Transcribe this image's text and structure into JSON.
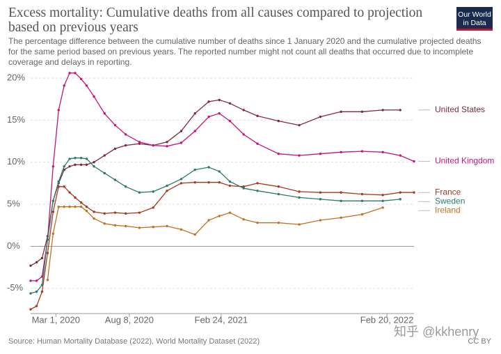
{
  "chart_data": {
    "type": "line",
    "title": "Excess mortality: Cumulative deaths from all causes compared to projection based on previous years",
    "subtitle": "The percentage difference between the cumulative number of deaths since 1 January 2020 and the cumulative projected deaths for the same period based on previous years. The reported number might not count all deaths that occurred due to incomplete coverage and delays in reporting.",
    "source": "Source: Human Mortality Database (2022), World Mortality Dataset (2022)",
    "license": "CC BY",
    "logo": "Our World in Data",
    "watermark": "知乎 @kkhenry",
    "x": [
      "2020-01-06",
      "2020-01-19",
      "2020-01-31",
      "2020-02-12",
      "2020-02-24",
      "2020-03-07",
      "2020-03-19",
      "2020-03-31",
      "2020-04-12",
      "2020-04-25",
      "2020-05-07",
      "2020-05-23",
      "2020-06-15",
      "2020-07-08",
      "2020-07-31",
      "2020-08-30",
      "2020-09-29",
      "2020-10-29",
      "2020-11-29",
      "2020-12-29",
      "2021-01-28",
      "2021-02-20",
      "2021-03-15",
      "2021-04-14",
      "2021-05-14",
      "2021-06-29",
      "2021-08-13",
      "2021-09-28",
      "2021-11-12",
      "2021-12-28",
      "2022-02-11",
      "2022-03-21",
      "2022-04-20"
    ],
    "xlim": [
      "2020-01-06",
      "2022-04-20"
    ],
    "xticks": [
      {
        "value": "2020-03-01",
        "label": "Mar 1, 2020"
      },
      {
        "value": "2020-08-08",
        "label": "Aug 8, 2020"
      },
      {
        "value": "2021-02-24",
        "label": "Feb 24, 2021"
      },
      {
        "value": "2022-02-20",
        "label": "Feb 20, 2022"
      }
    ],
    "ylim": [
      -8,
      21
    ],
    "yticks": [
      {
        "value": -5,
        "label": "-5%"
      },
      {
        "value": 0,
        "label": "0%"
      },
      {
        "value": 5,
        "label": "5%"
      },
      {
        "value": 10,
        "label": "10%"
      },
      {
        "value": 15,
        "label": "15%"
      },
      {
        "value": 20,
        "label": "20%"
      }
    ],
    "grid": true,
    "series": [
      {
        "name": "United States",
        "color": "#7f2b3c",
        "values": [
          -2.3,
          -1.9,
          -1.4,
          1.2,
          5.4,
          7.5,
          9.1,
          9.5,
          9.7,
          9.7,
          9.7,
          10,
          10.8,
          11.6,
          12,
          12.2,
          12,
          12.4,
          13.7,
          15.8,
          17.2,
          17.4,
          17,
          16.2,
          15.5,
          14.9,
          14.4,
          15.4,
          16,
          16,
          16.2,
          16.2,
          null
        ]
      },
      {
        "name": "United Kingdom",
        "color": "#c4157a",
        "values": [
          -4.1,
          -4.1,
          -3.6,
          0.8,
          9.5,
          16.2,
          19.1,
          20.6,
          20.6,
          19.9,
          19.1,
          17.8,
          15.8,
          14.4,
          13.3,
          12.4,
          12,
          11.9,
          12.3,
          13.7,
          15.4,
          15.8,
          14.9,
          13.3,
          12.2,
          11,
          10.8,
          11,
          11.2,
          11.3,
          11.2,
          10.8,
          10.1
        ]
      },
      {
        "name": "France",
        "color": "#a93a1f",
        "values": [
          -7.5,
          -7.1,
          -5.4,
          -0.8,
          4.1,
          7.1,
          7.1,
          6.4,
          5.8,
          5.2,
          4.7,
          4.1,
          3.9,
          4,
          3.9,
          4,
          4.6,
          6.6,
          7.5,
          7.6,
          7.6,
          7.6,
          7.2,
          7.1,
          7.5,
          7.1,
          6.5,
          6.4,
          6.4,
          6.2,
          6.1,
          6.4,
          6.4
        ]
      },
      {
        "name": "Sweden",
        "color": "#2b7a6a",
        "values": [
          -5.6,
          -5.4,
          -4.6,
          0.8,
          5.4,
          7.7,
          9.5,
          10.4,
          10.5,
          10.5,
          10.4,
          9.5,
          8.7,
          7.9,
          7.1,
          6.4,
          6.5,
          7.2,
          8,
          9.1,
          9.4,
          8.9,
          7.7,
          6.9,
          6.6,
          6.2,
          5.8,
          5.6,
          5.4,
          5.4,
          5.4,
          5.6,
          null
        ]
      },
      {
        "name": "Ireland",
        "color": "#c3701f",
        "values": [
          null,
          null,
          null,
          -4,
          1.5,
          4.7,
          4.7,
          4.7,
          4.7,
          4.7,
          4.2,
          3.3,
          2.7,
          2.5,
          2.4,
          2.2,
          2.3,
          2.4,
          2,
          1.4,
          3.1,
          3.6,
          4,
          3.2,
          2.8,
          2.8,
          2.6,
          3.1,
          3.4,
          3.8,
          4.6,
          null,
          null
        ]
      }
    ]
  }
}
